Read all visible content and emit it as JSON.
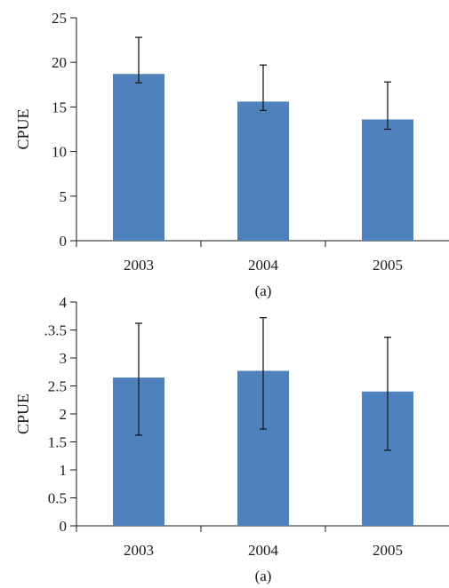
{
  "chart_data": [
    {
      "type": "bar",
      "categories": [
        "2003",
        "2004",
        "2005"
      ],
      "values": [
        18.7,
        15.6,
        13.6
      ],
      "error_upper": [
        22.8,
        19.7,
        17.8
      ],
      "error_lower": [
        17.7,
        14.6,
        12.5
      ],
      "ylabel": "CPUE",
      "xlabel": "",
      "ylim": [
        0,
        25
      ],
      "yticks": [
        "0",
        "5",
        "10",
        "15",
        "20",
        "25"
      ],
      "caption": "(a)",
      "grid": false,
      "bar_color": "#4f81bd"
    },
    {
      "type": "bar",
      "categories": [
        "2003",
        "2004",
        "2005"
      ],
      "values": [
        2.65,
        2.77,
        2.4
      ],
      "error_upper": [
        3.62,
        3.72,
        3.37
      ],
      "error_lower": [
        1.62,
        1.73,
        1.35
      ],
      "ylabel": "CPUE",
      "xlabel": "",
      "ylim": [
        0,
        4
      ],
      "yticks": [
        "0",
        "0.5",
        "1",
        "1.5",
        "2",
        "2.5",
        "3",
        ".3.5",
        "4"
      ],
      "caption": "(a)",
      "grid": false,
      "bar_color": "#4f81bd"
    }
  ]
}
